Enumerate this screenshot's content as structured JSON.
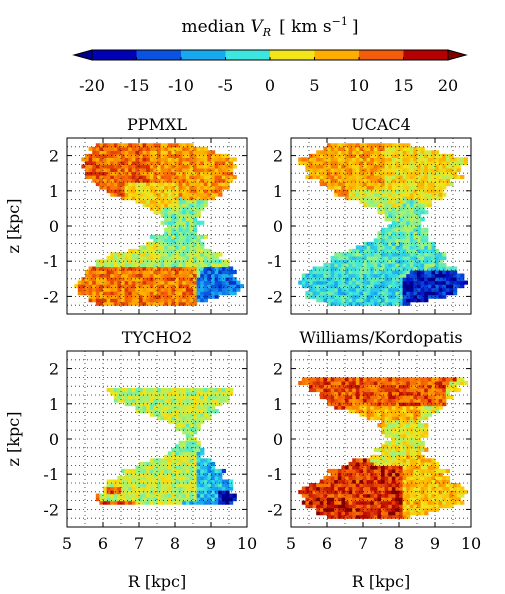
{
  "colorbar": {
    "title_prefix": "median ",
    "title_var": "V",
    "title_sub": "R",
    "title_unit": "[ km s",
    "title_exp": "−1",
    "title_close": "]",
    "ticks": [
      "-20",
      "-15",
      "-10",
      "-5",
      "0",
      "5",
      "10",
      "15",
      "20"
    ],
    "colors": [
      "#0000b4",
      "#0a52e0",
      "#18a8f0",
      "#3ee6e0",
      "#9ef27a",
      "#f2e51a",
      "#ffae00",
      "#f25c0a",
      "#b40000"
    ],
    "extend_low_color": "#00008c",
    "extend_high_color": "#800000"
  },
  "chart_data": [
    {
      "type": "heatmap",
      "title": "PPMXL",
      "xlabel": "",
      "ylabel": "z [kpc]",
      "xlim": [
        5,
        10
      ],
      "ylim": [
        -2.5,
        2.5
      ],
      "xticks": [
        "5",
        "6",
        "7",
        "8",
        "9",
        "10"
      ],
      "yticks": [
        "2",
        "1",
        "0",
        "-1",
        "-2"
      ],
      "grid": true,
      "value": "median V_R [km s^-1]",
      "regions": [
        {
          "R": [
            5.5,
            7.2
          ],
          "z": [
            1.2,
            1.9
          ],
          "value": 14
        },
        {
          "R": [
            7.2,
            9.2
          ],
          "z": [
            1.2,
            1.8
          ],
          "value": 11
        },
        {
          "R": [
            6.5,
            8.0
          ],
          "z": [
            0.4,
            1.2
          ],
          "value": 7
        },
        {
          "R": [
            7.5,
            8.6
          ],
          "z": [
            -0.5,
            0.5
          ],
          "value": -1
        },
        {
          "R": [
            7.5,
            9.6
          ],
          "z": [
            -1.2,
            -0.5
          ],
          "value": 0
        },
        {
          "R": [
            5.2,
            7.5
          ],
          "z": [
            -1.2,
            -0.5
          ],
          "value": 3
        },
        {
          "R": [
            5.2,
            8.5
          ],
          "z": [
            -2.3,
            -1.2
          ],
          "value": 13
        },
        {
          "R": [
            8.8,
            9.6
          ],
          "z": [
            -1.6,
            -1.2
          ],
          "value": -13
        }
      ]
    },
    {
      "type": "heatmap",
      "title": "UCAC4",
      "xlabel": "",
      "ylabel": "",
      "xlim": [
        5,
        10
      ],
      "ylim": [
        -2.5,
        2.5
      ],
      "xticks": [
        "5",
        "6",
        "7",
        "8",
        "9",
        "10"
      ],
      "yticks": [
        "2",
        "1",
        "0",
        "-1",
        "-2"
      ],
      "grid": true,
      "value": "median V_R [km s^-1]",
      "regions": [
        {
          "R": [
            5.5,
            7.5
          ],
          "z": [
            1.0,
            1.9
          ],
          "value": 10
        },
        {
          "R": [
            7.5,
            9.5
          ],
          "z": [
            1.0,
            1.8
          ],
          "value": 6
        },
        {
          "R": [
            6.5,
            8.0
          ],
          "z": [
            0.4,
            1.0
          ],
          "value": 3
        },
        {
          "R": [
            7.5,
            8.6
          ],
          "z": [
            -0.5,
            0.5
          ],
          "value": -2
        },
        {
          "R": [
            5.3,
            9.7
          ],
          "z": [
            -1.3,
            -0.5
          ],
          "value": -4
        },
        {
          "R": [
            5.3,
            8.0
          ],
          "z": [
            -2.3,
            -1.3
          ],
          "value": -6
        },
        {
          "R": [
            8.5,
            9.2
          ],
          "z": [
            -2.2,
            -1.8
          ],
          "value": -18
        }
      ]
    },
    {
      "type": "heatmap",
      "title": "TYCHO2",
      "xlabel": "R [kpc]",
      "ylabel": "z [kpc]",
      "xlim": [
        5,
        10
      ],
      "ylim": [
        -2.5,
        2.5
      ],
      "xticks": [
        "5",
        "6",
        "7",
        "8",
        "9",
        "10"
      ],
      "yticks": [
        "2",
        "1",
        "0",
        "-1",
        "-2"
      ],
      "grid": true,
      "value": "median V_R [km s^-1]",
      "regions": [
        {
          "R": [
            6.4,
            9.0
          ],
          "z": [
            0.5,
            1.3
          ],
          "value": 2
        },
        {
          "R": [
            7.5,
            8.6
          ],
          "z": [
            -0.5,
            0.5
          ],
          "value": 0
        },
        {
          "R": [
            5.8,
            8.5
          ],
          "z": [
            -1.8,
            -0.5
          ],
          "value": 2
        },
        {
          "R": [
            8.5,
            9.6
          ],
          "z": [
            -1.5,
            -0.4
          ],
          "value": -8
        },
        {
          "R": [
            9.2,
            9.6
          ],
          "z": [
            -1.2,
            -0.8
          ],
          "value": -19
        },
        {
          "R": [
            6.0,
            6.4
          ],
          "z": [
            -1.6,
            -1.4
          ],
          "value": 16
        }
      ]
    },
    {
      "type": "heatmap",
      "title": "Williams/Kordopatis",
      "xlabel": "R [kpc]",
      "ylabel": "",
      "xlim": [
        5,
        10
      ],
      "ylim": [
        -2.5,
        2.5
      ],
      "xticks": [
        "5",
        "6",
        "7",
        "8",
        "9",
        "10"
      ],
      "yticks": [
        "2",
        "1",
        "0",
        "-1",
        "-2"
      ],
      "grid": true,
      "value": "median V_R [km s^-1]",
      "regions": [
        {
          "R": [
            5.5,
            9.2
          ],
          "z": [
            0.9,
            1.7
          ],
          "value": 15
        },
        {
          "R": [
            6.5,
            8.5
          ],
          "z": [
            0.3,
            0.9
          ],
          "value": 9
        },
        {
          "R": [
            7.5,
            8.6
          ],
          "z": [
            -0.5,
            0.5
          ],
          "value": 4
        },
        {
          "R": [
            8.0,
            9.7
          ],
          "z": [
            -1.5,
            -0.5
          ],
          "value": 8
        },
        {
          "R": [
            5.2,
            8.0
          ],
          "z": [
            -2.3,
            -0.8
          ],
          "value": 17
        }
      ]
    }
  ]
}
